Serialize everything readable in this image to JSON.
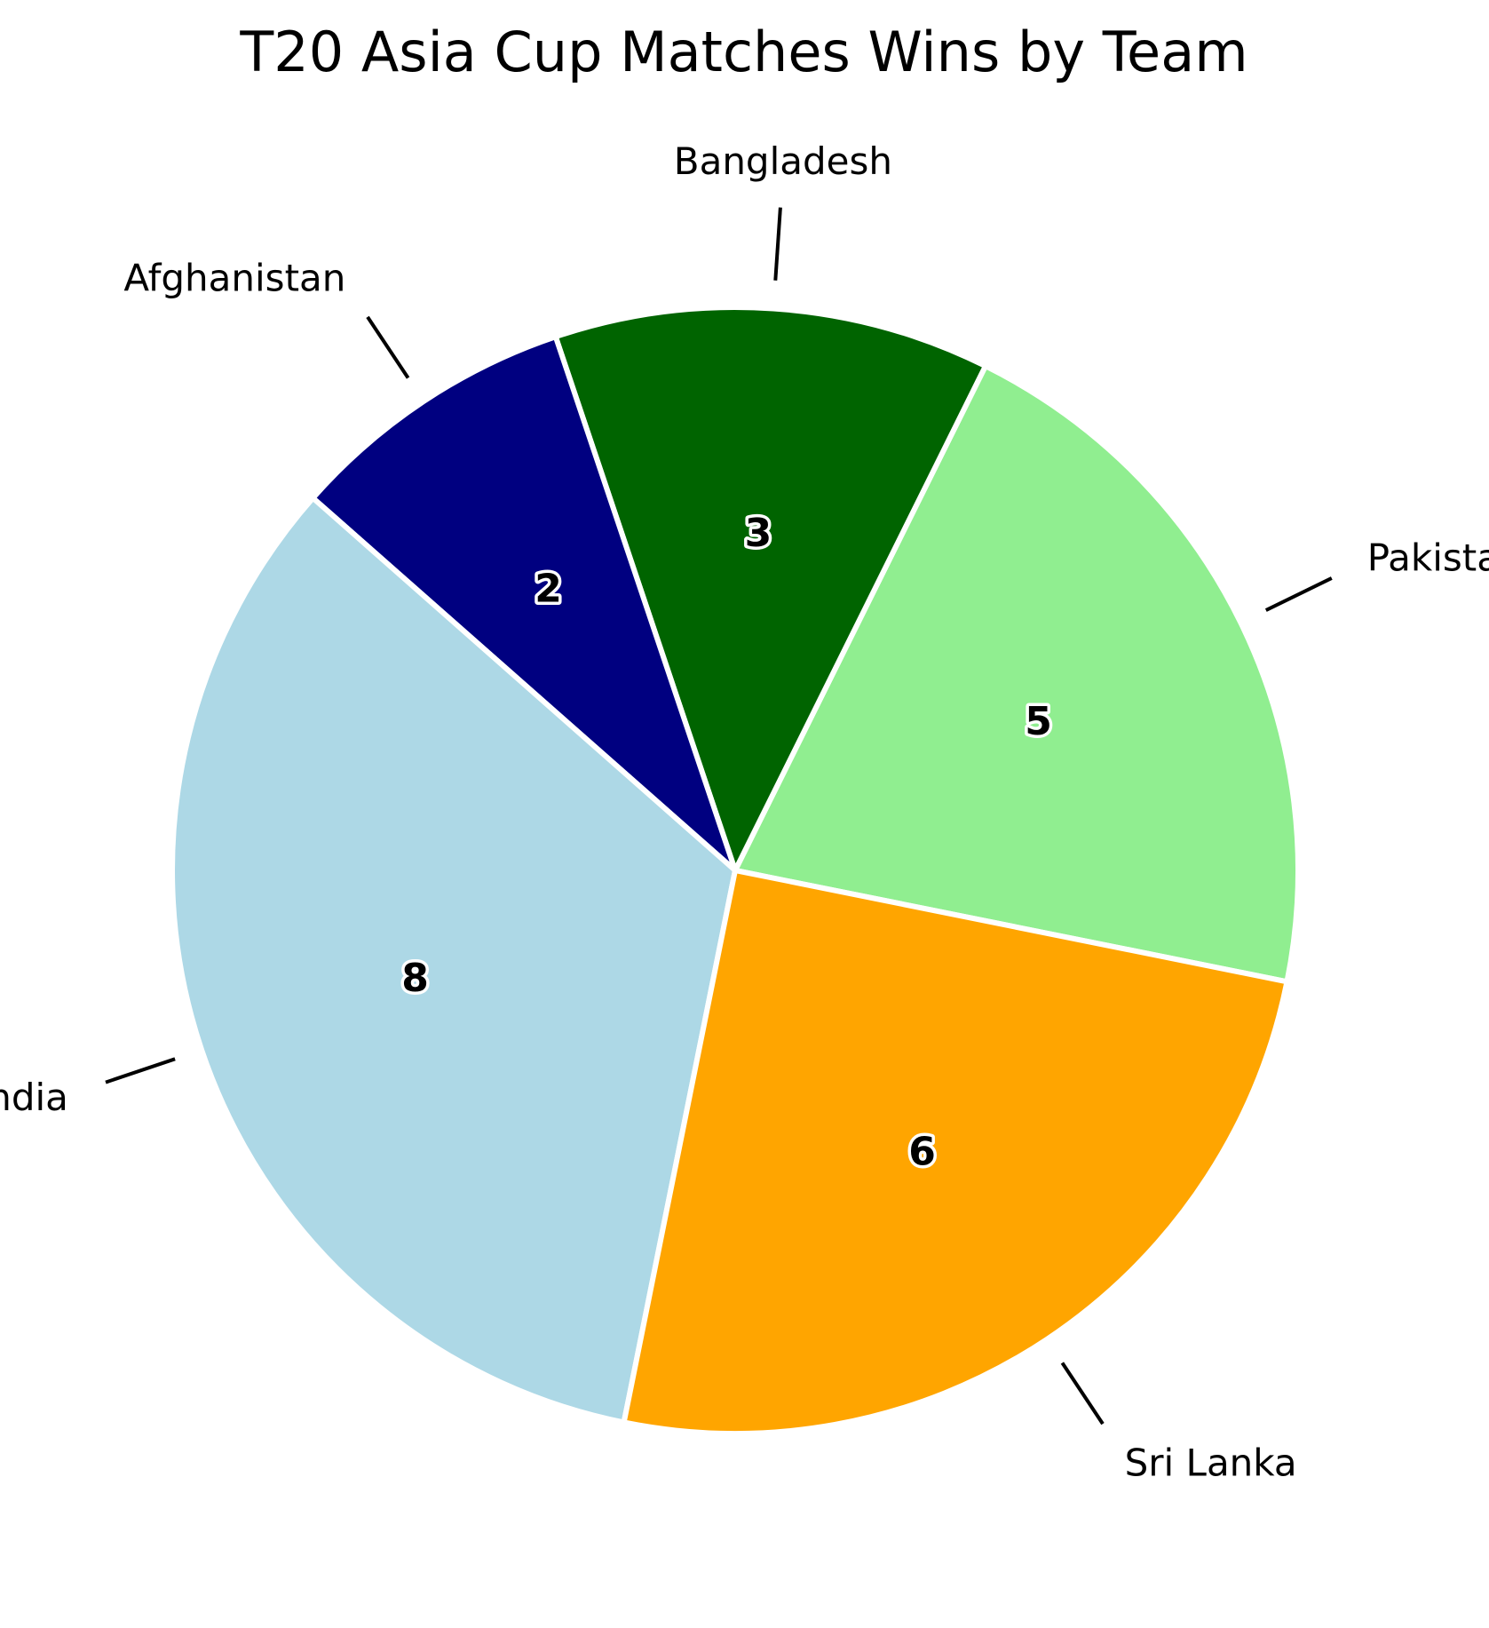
{
  "chart_data": {
    "type": "pie",
    "title": "T20 Asia Cup Matches Wins by Team",
    "categories": [
      "Pakistan",
      "Bangladesh",
      "Afghanistan",
      "India",
      "Sri Lanka"
    ],
    "values": [
      5,
      3,
      2,
      8,
      6
    ],
    "colors": [
      "#90ee90",
      "#006400",
      "#000080",
      "#add8e6",
      "#ffa500"
    ],
    "value_labels": [
      "5",
      "3",
      "2",
      "8",
      "6"
    ],
    "edge_color": "#ffffff"
  }
}
